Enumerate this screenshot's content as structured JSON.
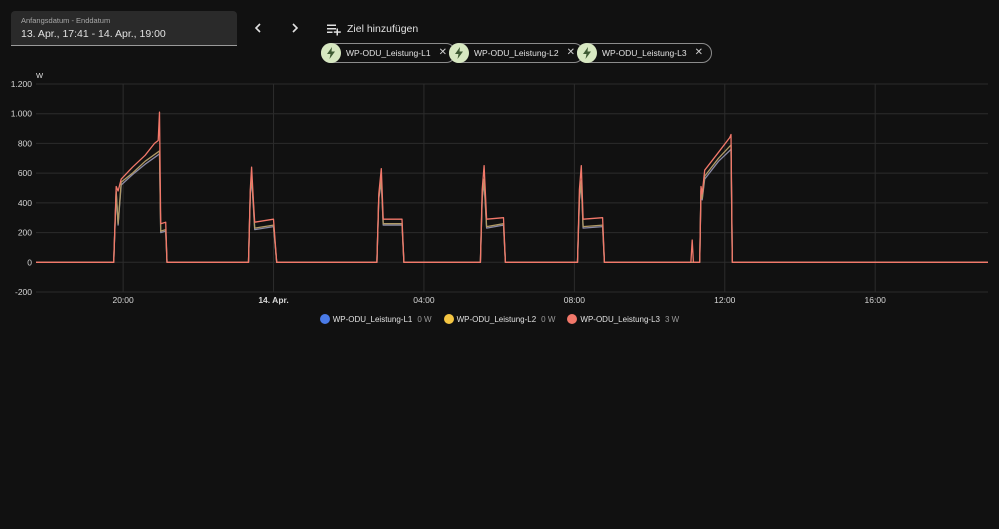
{
  "date_range": {
    "label": "Anfangsdatum - Enddatum",
    "value": "13. Apr., 17:41 - 14. Apr., 19:00"
  },
  "nav": {
    "prev_icon": "chevron-left-icon",
    "next_icon": "chevron-right-icon"
  },
  "add_target": {
    "label": "Ziel hinzufügen",
    "icon": "playlist-add-icon"
  },
  "chips": [
    {
      "label": "WP-ODU_Leistung-L1",
      "icon": "flash-icon",
      "close_icon": "close-icon"
    },
    {
      "label": "WP-ODU_Leistung-L2",
      "icon": "flash-icon",
      "close_icon": "close-icon"
    },
    {
      "label": "WP-ODU_Leistung-L3",
      "icon": "flash-icon",
      "close_icon": "close-icon"
    }
  ],
  "legend": [
    {
      "name": "WP-ODU_Leistung-L1",
      "value": "0 W",
      "color": "#4a7be8"
    },
    {
      "name": "WP-ODU_Leistung-L2",
      "value": "0 W",
      "color": "#f4c542"
    },
    {
      "name": "WP-ODU_Leistung-L3",
      "value": "3 W",
      "color": "#f2786a"
    }
  ],
  "chart_data": {
    "type": "line",
    "y_unit": "W",
    "ylim": [
      -200,
      1200
    ],
    "y_ticks": [
      {
        "value": -200,
        "label": "-200"
      },
      {
        "value": 0,
        "label": "0"
      },
      {
        "value": 200,
        "label": "200"
      },
      {
        "value": 400,
        "label": "400"
      },
      {
        "value": 600,
        "label": "600"
      },
      {
        "value": 800,
        "label": "800"
      },
      {
        "value": 1000,
        "label": "1.000"
      },
      {
        "value": 1200,
        "label": "1.200"
      }
    ],
    "xlim": [
      "13. Apr. 17:41",
      "14. Apr. 19:00"
    ],
    "x_ticks": [
      {
        "value": "13. Apr. 20:00",
        "label": "20:00",
        "bold": false
      },
      {
        "value": "14. Apr. 00:00",
        "label": "14. Apr.",
        "bold": true
      },
      {
        "value": "14. Apr. 04:00",
        "label": "04:00",
        "bold": false
      },
      {
        "value": "14. Apr. 08:00",
        "label": "08:00",
        "bold": false
      },
      {
        "value": "14. Apr. 12:00",
        "label": "12:00",
        "bold": false
      },
      {
        "value": "14. Apr. 16:00",
        "label": "16:00",
        "bold": false
      }
    ],
    "grid": true,
    "legend_position": "bottom",
    "series": [
      {
        "name": "WP-ODU_Leistung-L1",
        "color": "#8a8aa6",
        "points": [
          [
            "13. Apr. 17:41",
            0
          ],
          [
            "13. Apr. 19:45",
            0
          ],
          [
            "13. Apr. 19:49",
            470
          ],
          [
            "13. Apr. 19:52",
            250
          ],
          [
            "13. Apr. 19:57",
            520
          ],
          [
            "13. Apr. 20:15",
            590
          ],
          [
            "13. Apr. 20:35",
            660
          ],
          [
            "13. Apr. 20:55",
            720
          ],
          [
            "13. Apr. 20:58",
            730
          ],
          [
            "13. Apr. 21:00",
            200
          ],
          [
            "13. Apr. 21:08",
            210
          ],
          [
            "13. Apr. 21:10",
            0
          ],
          [
            "13. Apr. 23:20",
            0
          ],
          [
            "13. Apr. 23:23",
            460
          ],
          [
            "13. Apr. 23:25",
            560
          ],
          [
            "13. Apr. 23:28",
            360
          ],
          [
            "13. Apr. 23:30",
            220
          ],
          [
            "13. Apr. 24:00",
            240
          ],
          [
            "14. Apr. 00:05",
            0
          ],
          [
            "14. Apr. 02:45",
            0
          ],
          [
            "14. Apr. 02:48",
            430
          ],
          [
            "14. Apr. 02:52",
            540
          ],
          [
            "14. Apr. 02:55",
            250
          ],
          [
            "14. Apr. 03:25",
            250
          ],
          [
            "14. Apr. 03:28",
            0
          ],
          [
            "14. Apr. 05:30",
            0
          ],
          [
            "14. Apr. 05:33",
            430
          ],
          [
            "14. Apr. 05:36",
            540
          ],
          [
            "14. Apr. 05:40",
            230
          ],
          [
            "14. Apr. 06:07",
            250
          ],
          [
            "14. Apr. 06:10",
            0
          ],
          [
            "14. Apr. 08:05",
            0
          ],
          [
            "14. Apr. 08:08",
            420
          ],
          [
            "14. Apr. 08:11",
            530
          ],
          [
            "14. Apr. 08:14",
            230
          ],
          [
            "14. Apr. 08:45",
            240
          ],
          [
            "14. Apr. 08:48",
            0
          ],
          [
            "14. Apr. 11:20",
            0
          ],
          [
            "14. Apr. 11:22",
            480
          ],
          [
            "14. Apr. 11:24",
            420
          ],
          [
            "14. Apr. 11:28",
            560
          ],
          [
            "14. Apr. 11:50",
            680
          ],
          [
            "14. Apr. 12:10",
            760
          ],
          [
            "14. Apr. 12:12",
            0
          ],
          [
            "14. Apr. 19:00",
            0
          ]
        ]
      },
      {
        "name": "WP-ODU_Leistung-L2",
        "color": "#b09a66",
        "points": [
          [
            "13. Apr. 17:41",
            0
          ],
          [
            "13. Apr. 19:45",
            0
          ],
          [
            "13. Apr. 19:49",
            480
          ],
          [
            "13. Apr. 19:52",
            260
          ],
          [
            "13. Apr. 19:57",
            540
          ],
          [
            "13. Apr. 20:15",
            600
          ],
          [
            "13. Apr. 20:35",
            680
          ],
          [
            "13. Apr. 20:55",
            740
          ],
          [
            "13. Apr. 20:58",
            750
          ],
          [
            "13. Apr. 21:00",
            210
          ],
          [
            "13. Apr. 21:08",
            220
          ],
          [
            "13. Apr. 21:10",
            0
          ],
          [
            "13. Apr. 23:20",
            0
          ],
          [
            "13. Apr. 23:23",
            470
          ],
          [
            "13. Apr. 23:25",
            580
          ],
          [
            "13. Apr. 23:28",
            380
          ],
          [
            "13. Apr. 23:30",
            230
          ],
          [
            "13. Apr. 24:00",
            250
          ],
          [
            "14. Apr. 00:05",
            0
          ],
          [
            "14. Apr. 02:45",
            0
          ],
          [
            "14. Apr. 02:48",
            440
          ],
          [
            "14. Apr. 02:52",
            560
          ],
          [
            "14. Apr. 02:55",
            260
          ],
          [
            "14. Apr. 03:25",
            260
          ],
          [
            "14. Apr. 03:28",
            0
          ],
          [
            "14. Apr. 05:30",
            0
          ],
          [
            "14. Apr. 05:33",
            440
          ],
          [
            "14. Apr. 05:36",
            560
          ],
          [
            "14. Apr. 05:40",
            240
          ],
          [
            "14. Apr. 06:07",
            260
          ],
          [
            "14. Apr. 06:10",
            0
          ],
          [
            "14. Apr. 08:05",
            0
          ],
          [
            "14. Apr. 08:08",
            430
          ],
          [
            "14. Apr. 08:11",
            550
          ],
          [
            "14. Apr. 08:14",
            240
          ],
          [
            "14. Apr. 08:45",
            250
          ],
          [
            "14. Apr. 08:48",
            0
          ],
          [
            "14. Apr. 11:20",
            0
          ],
          [
            "14. Apr. 11:22",
            490
          ],
          [
            "14. Apr. 11:24",
            430
          ],
          [
            "14. Apr. 11:28",
            580
          ],
          [
            "14. Apr. 11:50",
            700
          ],
          [
            "14. Apr. 12:10",
            790
          ],
          [
            "14. Apr. 12:12",
            0
          ],
          [
            "14. Apr. 19:00",
            0
          ]
        ]
      },
      {
        "name": "WP-ODU_Leistung-L3",
        "color": "#f2786a",
        "points": [
          [
            "13. Apr. 17:41",
            0
          ],
          [
            "13. Apr. 19:45",
            0
          ],
          [
            "13. Apr. 19:49",
            510
          ],
          [
            "13. Apr. 19:52",
            480
          ],
          [
            "13. Apr. 19:57",
            560
          ],
          [
            "13. Apr. 20:15",
            640
          ],
          [
            "13. Apr. 20:35",
            720
          ],
          [
            "13. Apr. 20:50",
            800
          ],
          [
            "13. Apr. 20:56",
            820
          ],
          [
            "13. Apr. 20:58",
            1010
          ],
          [
            "13. Apr. 21:00",
            260
          ],
          [
            "13. Apr. 21:08",
            270
          ],
          [
            "13. Apr. 21:10",
            0
          ],
          [
            "13. Apr. 23:20",
            0
          ],
          [
            "13. Apr. 23:23",
            490
          ],
          [
            "13. Apr. 23:25",
            640
          ],
          [
            "13. Apr. 23:28",
            400
          ],
          [
            "13. Apr. 23:30",
            270
          ],
          [
            "13. Apr. 24:00",
            290
          ],
          [
            "14. Apr. 00:05",
            0
          ],
          [
            "14. Apr. 02:45",
            0
          ],
          [
            "14. Apr. 02:48",
            460
          ],
          [
            "14. Apr. 02:52",
            630
          ],
          [
            "14. Apr. 02:55",
            290
          ],
          [
            "14. Apr. 03:25",
            290
          ],
          [
            "14. Apr. 03:28",
            0
          ],
          [
            "14. Apr. 05:30",
            0
          ],
          [
            "14. Apr. 05:33",
            490
          ],
          [
            "14. Apr. 05:36",
            650
          ],
          [
            "14. Apr. 05:40",
            290
          ],
          [
            "14. Apr. 06:07",
            300
          ],
          [
            "14. Apr. 06:10",
            0
          ],
          [
            "14. Apr. 08:05",
            0
          ],
          [
            "14. Apr. 08:08",
            490
          ],
          [
            "14. Apr. 08:11",
            650
          ],
          [
            "14. Apr. 08:14",
            290
          ],
          [
            "14. Apr. 08:45",
            300
          ],
          [
            "14. Apr. 08:48",
            0
          ],
          [
            "14. Apr. 11:06",
            0
          ],
          [
            "14. Apr. 11:08",
            150
          ],
          [
            "14. Apr. 11:10",
            0
          ],
          [
            "14. Apr. 11:20",
            0
          ],
          [
            "14. Apr. 11:22",
            510
          ],
          [
            "14. Apr. 11:24",
            460
          ],
          [
            "14. Apr. 11:28",
            620
          ],
          [
            "14. Apr. 11:50",
            740
          ],
          [
            "14. Apr. 12:08",
            840
          ],
          [
            "14. Apr. 12:10",
            860
          ],
          [
            "14. Apr. 12:12",
            0
          ],
          [
            "14. Apr. 19:00",
            0
          ]
        ]
      }
    ]
  }
}
